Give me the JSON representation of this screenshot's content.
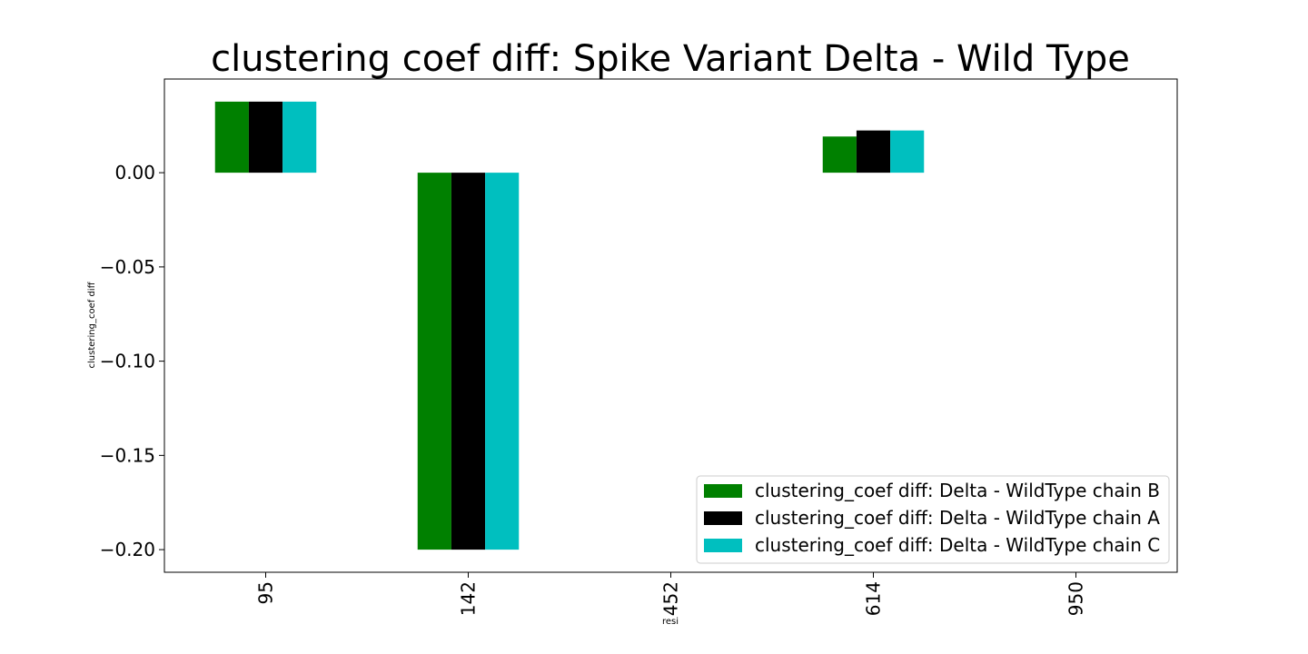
{
  "chart_data": {
    "type": "bar",
    "title": "clustering coef diff: Spike Variant Delta - Wild Type",
    "xlabel": "resi",
    "ylabel": "clustering_coef diff",
    "categories": [
      "95",
      "142",
      "452",
      "614",
      "950"
    ],
    "series": [
      {
        "name": "clustering_coef diff: Delta - WildType chain B",
        "color": "#008000",
        "values": [
          0.0377,
          -0.2,
          0,
          0.0192,
          0
        ]
      },
      {
        "name": "clustering_coef diff: Delta - WildType chain A",
        "color": "#000000",
        "values": [
          0.0377,
          -0.2,
          0,
          0.0224,
          0
        ]
      },
      {
        "name": "clustering_coef diff: Delta - WildType chain C",
        "color": "#00bfbf",
        "values": [
          0.0377,
          -0.2,
          0,
          0.0224,
          0
        ]
      }
    ],
    "yticks": [
      0.0,
      -0.05,
      -0.1,
      -0.15,
      -0.2
    ],
    "ytick_labels": [
      "0.00",
      "−0.05",
      "−0.10",
      "−0.15",
      "−0.20"
    ],
    "ylim": [
      -0.212,
      0.0497
    ],
    "grid": false,
    "legend_position": "lower-right"
  }
}
